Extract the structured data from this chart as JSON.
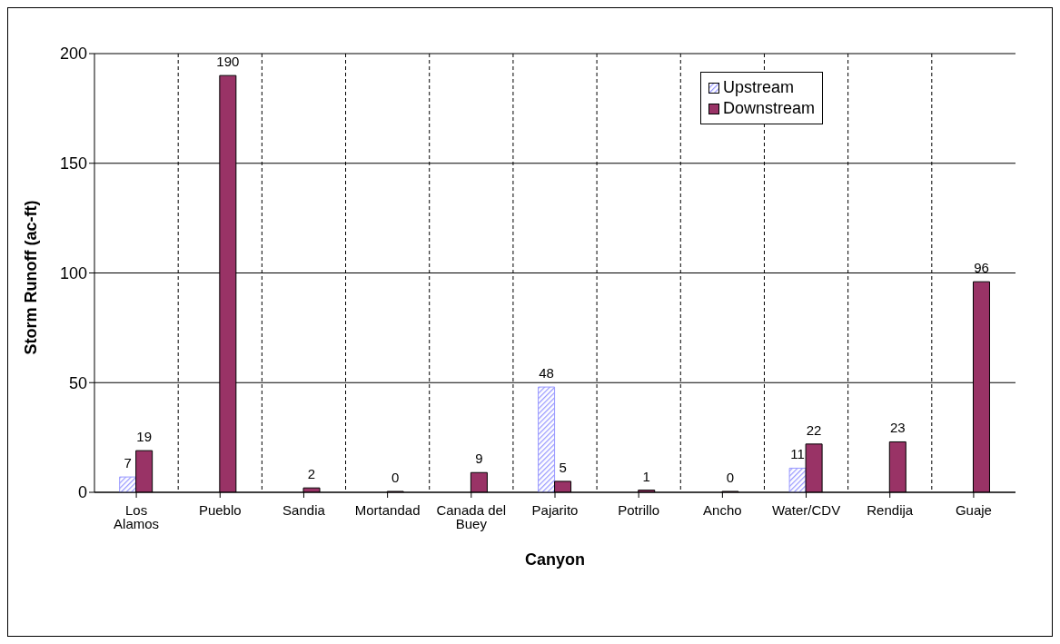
{
  "chart_data": {
    "type": "bar",
    "xlabel": "Canyon",
    "ylabel": "Storm Runoff (ac-ft)",
    "categories": [
      "Los Alamos",
      "Pueblo",
      "Sandia",
      "Mortandad",
      "Canada del Buey",
      "Pajarito",
      "Potrillo",
      "Ancho",
      "Water/CDV",
      "Rendija",
      "Guaje"
    ],
    "series": [
      {
        "name": "Upstream",
        "color": "#9999ff",
        "values": [
          7,
          null,
          null,
          null,
          null,
          48,
          null,
          null,
          11,
          null,
          null
        ]
      },
      {
        "name": "Downstream",
        "color": "#993366",
        "values": [
          19,
          190,
          2,
          0,
          9,
          5,
          1,
          0,
          22,
          23,
          96
        ]
      }
    ],
    "ylim": [
      0,
      200
    ],
    "yticks": [
      0,
      50,
      100,
      150,
      200
    ],
    "grid": true,
    "legend": "top right",
    "data_labels": true
  }
}
